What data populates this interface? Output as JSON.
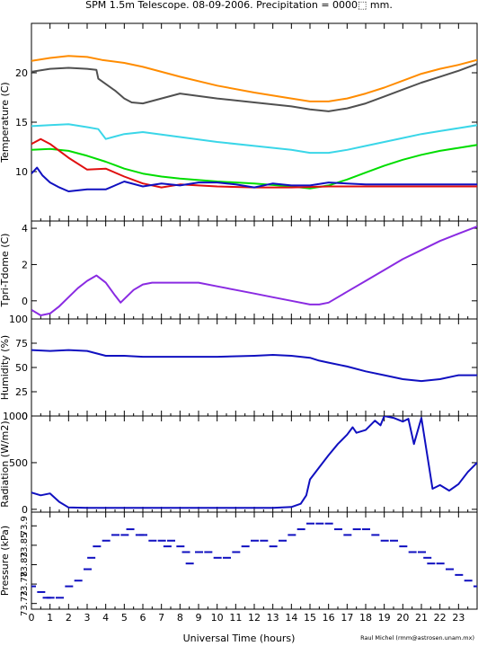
{
  "title": "SPM 1.5m Telescope. 08-09-2006. Precipitation = 0000⬚ mm.",
  "credit": "Raul Michel (rmm@astrosen.unam.mx)",
  "xlabel": "Universal Time (hours)",
  "x_ticks": [
    0,
    1,
    2,
    3,
    4,
    5,
    6,
    7,
    8,
    9,
    10,
    11,
    12,
    13,
    14,
    15,
    16,
    17,
    18,
    19,
    20,
    21,
    22,
    23
  ],
  "xlim": [
    0,
    24
  ],
  "chart_data": [
    {
      "type": "line",
      "ylabel": "Temperature (C)",
      "ylim": [
        5,
        25
      ],
      "y_ticks": [
        10,
        15,
        20
      ],
      "series": [
        {
          "color": "#ff8c00",
          "x": [
            0,
            1,
            2,
            3,
            3.8,
            5,
            6,
            8,
            10,
            12,
            14,
            15,
            16,
            17,
            18,
            19,
            20,
            21,
            22,
            23,
            24
          ],
          "y": [
            21.2,
            21.5,
            21.7,
            21.6,
            21.3,
            21.0,
            20.6,
            19.6,
            18.7,
            18.0,
            17.4,
            17.1,
            17.1,
            17.4,
            17.9,
            18.5,
            19.2,
            19.9,
            20.4,
            20.8,
            21.3
          ]
        },
        {
          "color": "#505050",
          "x": [
            0,
            1,
            2,
            3,
            3.5,
            3.6,
            4.5,
            5,
            5.4,
            6,
            8,
            10,
            12,
            14,
            15,
            16,
            17,
            18,
            19,
            20,
            21,
            22,
            23,
            24
          ],
          "y": [
            20.1,
            20.4,
            20.5,
            20.4,
            20.3,
            19.4,
            18.2,
            17.4,
            17.0,
            16.9,
            17.9,
            17.4,
            17.0,
            16.6,
            16.3,
            16.1,
            16.4,
            16.9,
            17.6,
            18.3,
            19.0,
            19.6,
            20.2,
            20.9
          ]
        },
        {
          "color": "#3ad6e8",
          "x": [
            0,
            1,
            2,
            3,
            3.6,
            4,
            5,
            6,
            8,
            10,
            12,
            14,
            15,
            16,
            17,
            18,
            19,
            20,
            21,
            22,
            23,
            24
          ],
          "y": [
            14.6,
            14.7,
            14.8,
            14.5,
            14.3,
            13.3,
            13.8,
            14.0,
            13.5,
            13.0,
            12.6,
            12.2,
            11.9,
            11.9,
            12.2,
            12.6,
            13.0,
            13.4,
            13.8,
            14.1,
            14.4,
            14.7
          ]
        },
        {
          "color": "#00dd00",
          "x": [
            0,
            1,
            2,
            3,
            4,
            5,
            6,
            7,
            8,
            10,
            12,
            14,
            15,
            16,
            17,
            18,
            19,
            20,
            21,
            22,
            23,
            24
          ],
          "y": [
            12.2,
            12.3,
            12.1,
            11.6,
            11.0,
            10.3,
            9.8,
            9.5,
            9.3,
            9.0,
            8.8,
            8.5,
            8.3,
            8.6,
            9.2,
            9.9,
            10.6,
            11.2,
            11.7,
            12.1,
            12.4,
            12.7
          ]
        },
        {
          "color": "#e01010",
          "x": [
            0,
            0.5,
            1,
            2,
            3,
            4,
            5,
            6,
            7,
            8,
            9,
            10,
            12,
            14,
            16,
            18,
            20,
            22,
            24
          ],
          "y": [
            12.8,
            13.3,
            12.8,
            11.4,
            10.2,
            10.3,
            9.5,
            8.8,
            8.4,
            8.7,
            8.6,
            8.5,
            8.4,
            8.4,
            8.5,
            8.5,
            8.5,
            8.5,
            8.5
          ]
        },
        {
          "color": "#1010c0",
          "x": [
            0,
            0.3,
            0.6,
            1,
            1.5,
            2,
            3,
            4,
            5,
            6,
            7,
            8,
            9,
            10,
            11,
            12,
            13,
            14,
            15,
            16,
            17,
            18,
            19,
            20,
            21,
            22,
            23,
            24
          ],
          "y": [
            9.8,
            10.4,
            9.6,
            8.9,
            8.4,
            8.0,
            8.2,
            8.2,
            9.0,
            8.5,
            8.8,
            8.6,
            8.9,
            8.9,
            8.7,
            8.4,
            8.8,
            8.6,
            8.6,
            8.9,
            8.8,
            8.7,
            8.7,
            8.7,
            8.7,
            8.7,
            8.7,
            8.7
          ]
        }
      ]
    },
    {
      "type": "line",
      "ylabel": "Tpri-Tdome (C)",
      "ylim": [
        -1,
        4.4
      ],
      "y_ticks": [
        0,
        2,
        4
      ],
      "series": [
        {
          "color": "#8a2be2",
          "x": [
            0,
            0.5,
            1,
            1.5,
            2,
            2.5,
            3,
            3.5,
            4,
            4.5,
            4.8,
            5,
            5.5,
            6,
            6.5,
            7,
            7.5,
            8,
            9,
            10,
            11,
            12,
            13,
            14,
            15,
            15.5,
            16,
            17,
            18,
            19,
            20,
            21,
            22,
            23,
            24
          ],
          "y": [
            -0.5,
            -0.8,
            -0.7,
            -0.3,
            0.2,
            0.7,
            1.1,
            1.4,
            1.0,
            0.3,
            -0.1,
            0.1,
            0.6,
            0.9,
            1.0,
            1.0,
            1.0,
            1.0,
            1.0,
            0.8,
            0.6,
            0.4,
            0.2,
            0.0,
            -0.2,
            -0.2,
            -0.1,
            0.5,
            1.1,
            1.7,
            2.3,
            2.8,
            3.3,
            3.7,
            4.1
          ]
        }
      ]
    },
    {
      "type": "line",
      "ylabel": "Humidity (%)",
      "ylim": [
        0,
        100
      ],
      "y_ticks": [
        0,
        25,
        50,
        75,
        100
      ],
      "series": [
        {
          "color": "#1010c0",
          "x": [
            0,
            1,
            2,
            3,
            4,
            5,
            6,
            8,
            10,
            12,
            13,
            14,
            15,
            15.5,
            16,
            17,
            18,
            19,
            20,
            21,
            22,
            23,
            24
          ],
          "y": [
            68,
            67,
            68,
            67,
            62,
            62,
            61,
            61,
            61,
            62,
            63,
            62,
            60,
            57,
            55,
            51,
            46,
            42,
            38,
            36,
            38,
            42,
            42
          ]
        }
      ]
    },
    {
      "type": "line",
      "ylabel": "Radiation (W/m2)",
      "ylim": [
        -30,
        1000
      ],
      "y_ticks": [
        0,
        500,
        1000
      ],
      "series": [
        {
          "color": "#1010c0",
          "x": [
            0,
            0.5,
            1,
            1.5,
            2,
            3,
            4,
            6,
            8,
            10,
            12,
            13,
            14,
            14.5,
            14.8,
            15,
            15.5,
            16,
            16.5,
            17,
            17.3,
            17.5,
            18,
            18.5,
            18.8,
            19,
            19.5,
            20,
            20.3,
            20.6,
            21,
            21.3,
            21.6,
            22,
            22.5,
            23,
            23.5,
            24
          ],
          "y": [
            180,
            150,
            170,
            80,
            20,
            15,
            15,
            15,
            15,
            15,
            15,
            15,
            25,
            60,
            150,
            320,
            450,
            580,
            700,
            800,
            880,
            820,
            850,
            950,
            900,
            1000,
            980,
            940,
            970,
            700,
            980,
            600,
            220,
            260,
            200,
            270,
            400,
            500
          ]
        }
      ]
    },
    {
      "type": "scatter",
      "ylabel": "Pressure (kPa)",
      "ylim": [
        73.74,
        73.91
      ],
      "y_tick_labels": [
        "73.73",
        "73.78",
        "73.83",
        "73.85",
        "73.9"
      ],
      "series": [
        {
          "color": "#1010c0",
          "x": [
            0,
            0.5,
            0.8,
            1,
            1.5,
            2,
            2.5,
            3,
            3.2,
            3.5,
            4,
            4.5,
            5,
            5.3,
            5.8,
            6,
            6.5,
            7,
            7.3,
            7.5,
            8,
            8.3,
            8.5,
            9,
            9.5,
            10,
            10.5,
            11,
            11.5,
            12,
            12.5,
            13,
            13.5,
            14,
            14.5,
            15,
            15.5,
            16,
            16.5,
            17,
            17.5,
            18,
            18.5,
            19,
            19.5,
            20,
            20.5,
            21,
            21.3,
            21.5,
            22,
            22.5,
            23,
            23.5,
            24
          ],
          "y": [
            73.78,
            73.77,
            73.76,
            73.76,
            73.76,
            73.78,
            73.79,
            73.81,
            73.83,
            73.85,
            73.86,
            73.87,
            73.87,
            73.88,
            73.87,
            73.87,
            73.86,
            73.86,
            73.85,
            73.86,
            73.85,
            73.84,
            73.82,
            73.84,
            73.84,
            73.83,
            73.83,
            73.84,
            73.85,
            73.86,
            73.86,
            73.85,
            73.86,
            73.87,
            73.88,
            73.89,
            73.89,
            73.89,
            73.88,
            73.87,
            73.88,
            73.88,
            73.87,
            73.86,
            73.86,
            73.85,
            73.84,
            73.84,
            73.83,
            73.82,
            73.82,
            73.81,
            73.8,
            73.79,
            73.78
          ]
        }
      ]
    }
  ]
}
